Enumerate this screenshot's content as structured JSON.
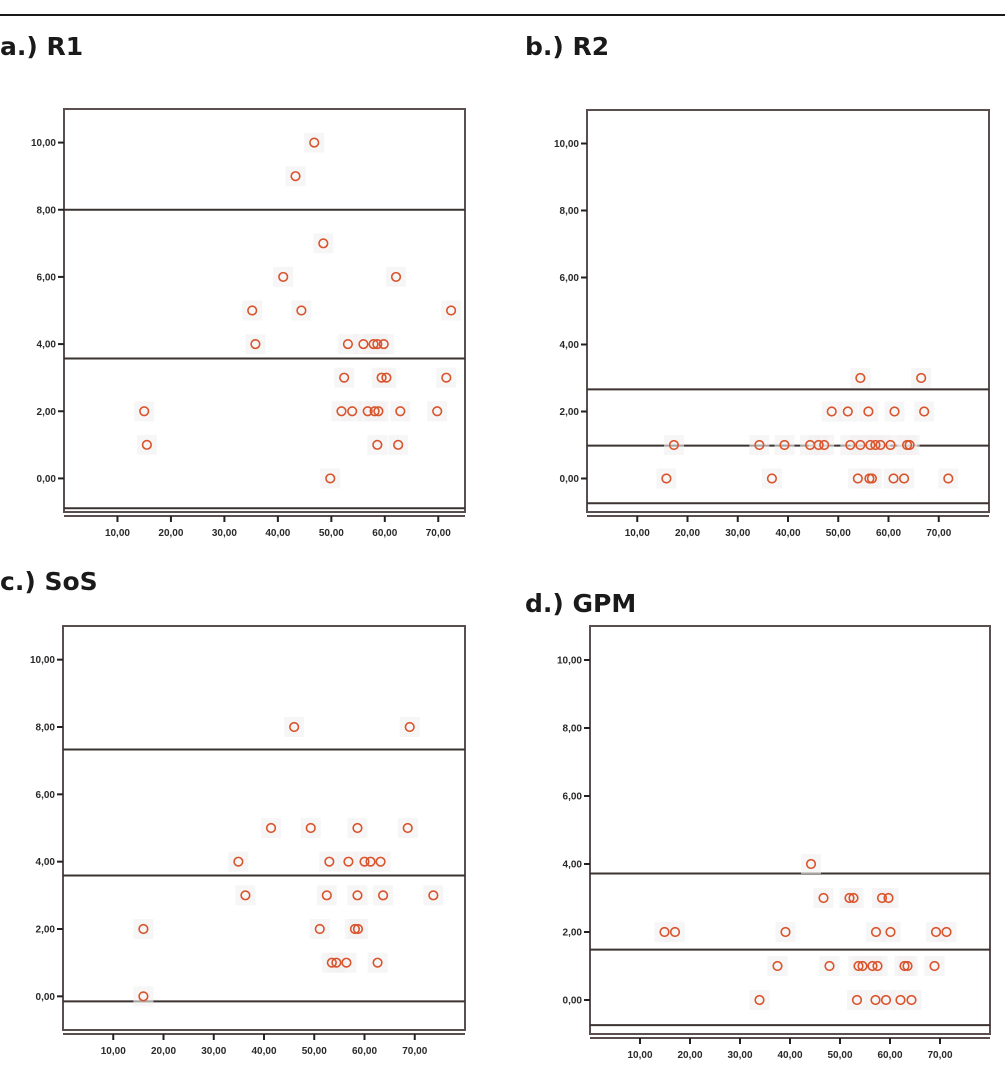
{
  "chart_data": [
    {
      "type": "scatter",
      "title": "a.) R1",
      "xlim": [
        0,
        75
      ],
      "ylim": [
        -1,
        11
      ],
      "x_ticks": [
        {
          "v": 10,
          "label": "10,00"
        },
        {
          "v": 20,
          "label": "20,00"
        },
        {
          "v": 30,
          "label": "30,00"
        },
        {
          "v": 40,
          "label": "40,00"
        },
        {
          "v": 50,
          "label": "50,00"
        },
        {
          "v": 60,
          "label": "60,00"
        },
        {
          "v": 70,
          "label": "70,00"
        }
      ],
      "y_ticks": [
        {
          "v": 0,
          "label": "0,00"
        },
        {
          "v": 2,
          "label": "2,00"
        },
        {
          "v": 4,
          "label": "4,00"
        },
        {
          "v": 6,
          "label": "6,00"
        },
        {
          "v": 8,
          "label": "8,00"
        },
        {
          "v": 10,
          "label": "10,00"
        }
      ],
      "reference_lines": {
        "upper": 8.0,
        "mean": 3.57,
        "lower": -0.89
      },
      "points": [
        [
          15.0,
          2
        ],
        [
          15.5,
          1
        ],
        [
          35.2,
          5
        ],
        [
          35.8,
          4
        ],
        [
          41.0,
          6
        ],
        [
          43.3,
          9
        ],
        [
          44.4,
          5
        ],
        [
          46.8,
          10
        ],
        [
          48.5,
          7
        ],
        [
          49.8,
          0
        ],
        [
          51.9,
          2
        ],
        [
          52.4,
          3
        ],
        [
          53.1,
          4
        ],
        [
          53.9,
          2
        ],
        [
          56.0,
          4
        ],
        [
          56.8,
          2
        ],
        [
          57.9,
          4
        ],
        [
          58.1,
          2
        ],
        [
          58.6,
          1
        ],
        [
          58.6,
          4
        ],
        [
          58.8,
          2
        ],
        [
          59.4,
          3
        ],
        [
          59.8,
          4
        ],
        [
          60.3,
          3
        ],
        [
          62.1,
          6
        ],
        [
          62.5,
          1
        ],
        [
          62.9,
          2
        ],
        [
          69.8,
          2
        ],
        [
          71.5,
          3
        ],
        [
          72.4,
          5
        ]
      ]
    },
    {
      "type": "scatter",
      "title": "b.) R2",
      "xlim": [
        0,
        80
      ],
      "ylim": [
        -1,
        11
      ],
      "x_ticks": [
        {
          "v": 10,
          "label": "10,00"
        },
        {
          "v": 20,
          "label": "20,00"
        },
        {
          "v": 30,
          "label": "30,00"
        },
        {
          "v": 40,
          "label": "40,00"
        },
        {
          "v": 50,
          "label": "50,00"
        },
        {
          "v": 60,
          "label": "60,00"
        },
        {
          "v": 70,
          "label": "70,00"
        }
      ],
      "y_ticks": [
        {
          "v": 0,
          "label": "0,00"
        },
        {
          "v": 2,
          "label": "2,00"
        },
        {
          "v": 4,
          "label": "4,00"
        },
        {
          "v": 6,
          "label": "6,00"
        },
        {
          "v": 8,
          "label": "8,00"
        },
        {
          "v": 10,
          "label": "10,00"
        }
      ],
      "reference_lines": {
        "upper": 2.66,
        "mean": 0.98,
        "lower": -0.74
      },
      "points": [
        [
          54.4,
          3
        ],
        [
          66.5,
          3
        ],
        [
          48.7,
          2
        ],
        [
          51.9,
          2
        ],
        [
          56.0,
          2
        ],
        [
          61.2,
          2
        ],
        [
          67.1,
          2
        ],
        [
          17.3,
          1
        ],
        [
          34.3,
          1
        ],
        [
          39.3,
          1
        ],
        [
          44.4,
          1
        ],
        [
          46.1,
          1
        ],
        [
          47.2,
          1
        ],
        [
          52.4,
          1
        ],
        [
          54.4,
          1
        ],
        [
          56.4,
          1
        ],
        [
          57.4,
          1
        ],
        [
          58.4,
          1
        ],
        [
          60.4,
          1
        ],
        [
          63.7,
          1
        ],
        [
          64.2,
          1
        ],
        [
          15.8,
          0
        ],
        [
          36.8,
          0
        ],
        [
          53.9,
          0
        ],
        [
          56.2,
          0
        ],
        [
          56.7,
          0
        ],
        [
          61.0,
          0
        ],
        [
          63.1,
          0
        ],
        [
          71.9,
          0
        ]
      ]
    },
    {
      "type": "scatter",
      "title": "c.) SoS",
      "xlim": [
        0,
        80
      ],
      "ylim": [
        -1,
        11
      ],
      "x_ticks": [
        {
          "v": 10,
          "label": "10,00"
        },
        {
          "v": 20,
          "label": "20,00"
        },
        {
          "v": 30,
          "label": "30,00"
        },
        {
          "v": 40,
          "label": "40,00"
        },
        {
          "v": 50,
          "label": "50,00"
        },
        {
          "v": 60,
          "label": "60,00"
        },
        {
          "v": 70,
          "label": "70,00"
        }
      ],
      "y_ticks": [
        {
          "v": 0,
          "label": "0,00"
        },
        {
          "v": 2,
          "label": "2,00"
        },
        {
          "v": 4,
          "label": "4,00"
        },
        {
          "v": 6,
          "label": "6,00"
        },
        {
          "v": 8,
          "label": "8,00"
        },
        {
          "v": 10,
          "label": "10,00"
        }
      ],
      "reference_lines": {
        "upper": 7.33,
        "mean": 3.59,
        "lower": -0.15
      },
      "points": [
        [
          46.0,
          8
        ],
        [
          69.0,
          8
        ],
        [
          41.4,
          5
        ],
        [
          49.3,
          5
        ],
        [
          58.6,
          5
        ],
        [
          68.6,
          5
        ],
        [
          34.9,
          4
        ],
        [
          53.0,
          4
        ],
        [
          56.8,
          4
        ],
        [
          60.0,
          4
        ],
        [
          61.2,
          4
        ],
        [
          63.2,
          4
        ],
        [
          36.3,
          3
        ],
        [
          52.5,
          3
        ],
        [
          58.6,
          3
        ],
        [
          63.7,
          3
        ],
        [
          73.7,
          3
        ],
        [
          16.0,
          2
        ],
        [
          51.1,
          2
        ],
        [
          58.1,
          2
        ],
        [
          58.7,
          2
        ],
        [
          53.5,
          1
        ],
        [
          54.4,
          1
        ],
        [
          56.4,
          1
        ],
        [
          62.6,
          1
        ],
        [
          16.0,
          0
        ]
      ]
    },
    {
      "type": "scatter",
      "title": "d.) GPM",
      "xlim": [
        0,
        80
      ],
      "ylim": [
        -1,
        11
      ],
      "x_ticks": [
        {
          "v": 10,
          "label": "10,00"
        },
        {
          "v": 20,
          "label": "20,00"
        },
        {
          "v": 30,
          "label": "30,00"
        },
        {
          "v": 40,
          "label": "40,00"
        },
        {
          "v": 50,
          "label": "50,00"
        },
        {
          "v": 60,
          "label": "60,00"
        },
        {
          "v": 70,
          "label": "70,00"
        }
      ],
      "y_ticks": [
        {
          "v": 0,
          "label": "0,00"
        },
        {
          "v": 2,
          "label": "2,00"
        },
        {
          "v": 4,
          "label": "4,00"
        },
        {
          "v": 6,
          "label": "6,00"
        },
        {
          "v": 8,
          "label": "8,00"
        },
        {
          "v": 10,
          "label": "10,00"
        }
      ],
      "reference_lines": {
        "upper": 3.72,
        "mean": 1.48,
        "lower": -0.74
      },
      "points": [
        [
          44.2,
          4
        ],
        [
          46.7,
          3
        ],
        [
          51.9,
          3
        ],
        [
          52.7,
          3
        ],
        [
          58.4,
          3
        ],
        [
          59.7,
          3
        ],
        [
          14.9,
          2
        ],
        [
          17.0,
          2
        ],
        [
          39.1,
          2
        ],
        [
          57.2,
          2
        ],
        [
          60.1,
          2
        ],
        [
          69.2,
          2
        ],
        [
          71.3,
          2
        ],
        [
          37.5,
          1
        ],
        [
          47.9,
          1
        ],
        [
          53.7,
          1
        ],
        [
          54.5,
          1
        ],
        [
          56.5,
          1
        ],
        [
          57.5,
          1
        ],
        [
          62.9,
          1
        ],
        [
          63.5,
          1
        ],
        [
          68.9,
          1
        ],
        [
          33.9,
          0
        ],
        [
          53.4,
          0
        ],
        [
          57.1,
          0
        ],
        [
          59.2,
          0
        ],
        [
          62.1,
          0
        ],
        [
          64.3,
          0
        ]
      ]
    }
  ],
  "colors": {
    "marker": "#d9542c",
    "line": "#3b3232",
    "frame": "#5a4f4f"
  }
}
